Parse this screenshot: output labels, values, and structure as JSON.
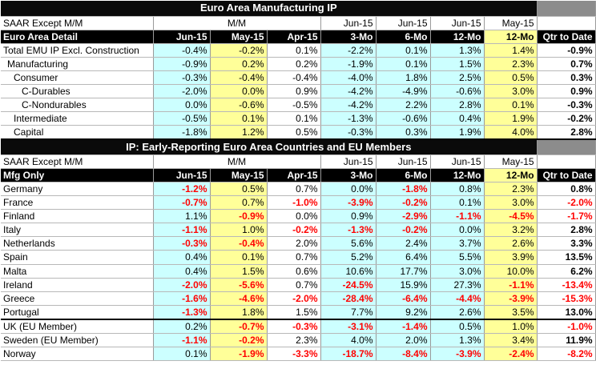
{
  "colors": {
    "cyan": "#ccffff",
    "yellow": "#ffff99",
    "gray": "#8c8c8c",
    "negative": "#ff0000"
  },
  "sec1": {
    "title": "Euro Area Manufacturing IP",
    "sub": {
      "label": "SAAR Except M/M",
      "mm": "M/M",
      "c4": "Jun-15",
      "c5": "Jun-15",
      "c6": "Jun-15",
      "c7": "May-15"
    },
    "hdr": {
      "label": "Euro Area Detail",
      "cols": [
        "Jun-15",
        "May-15",
        "Apr-15",
        "3-Mo",
        "6-Mo",
        "12-Mo",
        "12-Mo",
        "Qtr to Date"
      ]
    },
    "rows": [
      {
        "label": "Total EMU IP Excl. Construction",
        "v": [
          "-0.4%",
          "-0.2%",
          "0.1%",
          "-2.2%",
          "0.1%",
          "1.3%",
          "1.4%",
          "-0.9%"
        ]
      },
      {
        "label": "Manufacturing",
        "v": [
          "-0.9%",
          "0.2%",
          "0.2%",
          "-1.9%",
          "0.1%",
          "1.5%",
          "2.3%",
          "0.7%"
        ]
      },
      {
        "label": "Consumer",
        "v": [
          "-0.3%",
          "-0.4%",
          "-0.4%",
          "-4.0%",
          "1.8%",
          "2.5%",
          "0.5%",
          "0.3%"
        ]
      },
      {
        "label": "C-Durables",
        "v": [
          "-2.0%",
          "0.0%",
          "0.9%",
          "-4.2%",
          "-4.9%",
          "-0.6%",
          "3.0%",
          "0.9%"
        ]
      },
      {
        "label": "C-Nondurables",
        "v": [
          "0.0%",
          "-0.6%",
          "-0.5%",
          "-4.2%",
          "2.2%",
          "2.8%",
          "0.1%",
          "-0.3%"
        ]
      },
      {
        "label": "Intermediate",
        "v": [
          "-0.5%",
          "0.1%",
          "0.1%",
          "-1.3%",
          "-0.6%",
          "0.4%",
          "1.9%",
          "-0.2%"
        ]
      },
      {
        "label": "Capital",
        "v": [
          "-1.8%",
          "1.2%",
          "0.5%",
          "-0.3%",
          "0.3%",
          "1.9%",
          "4.0%",
          "2.8%"
        ]
      }
    ]
  },
  "sec2": {
    "title": "IP: Early-Reporting Euro Area Countries and EU Members",
    "sub": {
      "label": "SAAR Except M/M",
      "mm": "M/M",
      "c4": "Jun-15",
      "c5": "Jun-15",
      "c6": "Jun-15",
      "c7": "May-15"
    },
    "hdr": {
      "label": "Mfg Only",
      "cols": [
        "Jun-15",
        "May-15",
        "Apr-15",
        "3-Mo",
        "6-Mo",
        "12-Mo",
        "12-Mo",
        "Qtr to Date"
      ]
    },
    "rows": [
      {
        "label": "Germany",
        "v": [
          "-1.2%",
          "0.5%",
          "0.7%",
          "0.0%",
          "-1.8%",
          "0.8%",
          "2.3%",
          "0.8%"
        ]
      },
      {
        "label": "France",
        "v": [
          "-0.7%",
          "0.7%",
          "-1.0%",
          "-3.9%",
          "-0.2%",
          "0.1%",
          "3.0%",
          "-2.0%"
        ]
      },
      {
        "label": "Finland",
        "v": [
          "1.1%",
          "-0.9%",
          "0.0%",
          "0.9%",
          "-2.9%",
          "-1.1%",
          "-4.5%",
          "-1.7%"
        ]
      },
      {
        "label": "Italy",
        "v": [
          "-1.1%",
          "1.0%",
          "-0.2%",
          "-1.3%",
          "-0.2%",
          "0.0%",
          "3.2%",
          "2.8%"
        ]
      },
      {
        "label": "Netherlands",
        "v": [
          "-0.3%",
          "-0.4%",
          "2.0%",
          "5.6%",
          "2.4%",
          "3.7%",
          "2.6%",
          "3.3%"
        ]
      },
      {
        "label": "Spain",
        "v": [
          "0.4%",
          "0.1%",
          "0.7%",
          "5.2%",
          "6.4%",
          "5.5%",
          "3.9%",
          "13.5%"
        ]
      },
      {
        "label": "Malta",
        "v": [
          "0.4%",
          "1.5%",
          "0.6%",
          "10.6%",
          "17.7%",
          "3.0%",
          "10.0%",
          "6.2%"
        ]
      },
      {
        "label": "Ireland",
        "v": [
          "-2.0%",
          "-5.6%",
          "0.7%",
          "-24.5%",
          "15.9%",
          "27.3%",
          "-1.1%",
          "-13.4%"
        ]
      },
      {
        "label": "Greece",
        "v": [
          "-1.6%",
          "-4.6%",
          "-2.0%",
          "-28.4%",
          "-6.4%",
          "-4.4%",
          "-3.9%",
          "-15.3%"
        ]
      },
      {
        "label": "Portugal",
        "v": [
          "-1.3%",
          "1.8%",
          "1.5%",
          "7.7%",
          "9.2%",
          "2.6%",
          "3.5%",
          "13.0%"
        ]
      },
      {
        "label": "UK (EU Member)",
        "v": [
          "0.2%",
          "-0.7%",
          "-0.3%",
          "-3.1%",
          "-1.4%",
          "0.5%",
          "1.0%",
          "-1.0%"
        ]
      },
      {
        "label": "Sweden (EU Member)",
        "v": [
          "-1.1%",
          "-0.2%",
          "2.3%",
          "4.0%",
          "2.0%",
          "1.3%",
          "3.4%",
          "11.9%"
        ]
      },
      {
        "label": "Norway",
        "v": [
          "0.1%",
          "-1.9%",
          "-3.3%",
          "-18.7%",
          "-8.4%",
          "-3.9%",
          "-2.4%",
          "-8.2%"
        ]
      }
    ]
  }
}
